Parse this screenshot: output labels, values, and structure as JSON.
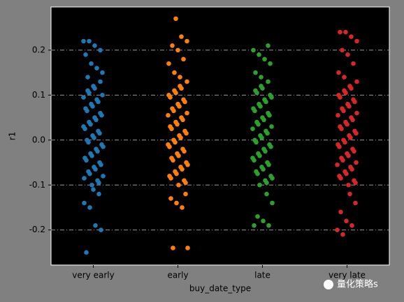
{
  "chart_data": {
    "type": "strip",
    "xlabel": "buy_date_type",
    "ylabel": "r1",
    "categories": [
      "very early",
      "early",
      "late",
      "very late"
    ],
    "series": [
      {
        "color": "#1f77b4",
        "values": [
          0.22,
          0.22,
          0.21,
          0.2,
          0.19,
          0.17,
          0.16,
          0.15,
          0.14,
          -0.11,
          -0.12,
          -0.14,
          -0.15,
          -0.19,
          -0.2,
          -0.25,
          -0.1,
          -0.09,
          -0.08,
          -0.07,
          -0.06,
          -0.05,
          -0.04,
          -0.03,
          -0.02,
          -0.01,
          0,
          0.01,
          0.02,
          0.03,
          0.04,
          0.05,
          0.06,
          0.07,
          0.08,
          0.09,
          0.1,
          0.11,
          0.12,
          -0.095,
          -0.085,
          -0.075,
          -0.065,
          -0.055,
          -0.045,
          -0.035,
          -0.025,
          -0.015,
          -0.005,
          0.005,
          0.015,
          0.025,
          0.035,
          0.045,
          0.055,
          0.065,
          0.075,
          0.085,
          0.095,
          0.105,
          0.115,
          0.13
        ]
      },
      {
        "color": "#ff7f0e",
        "values": [
          0.27,
          0.23,
          0.22,
          0.21,
          0.2,
          0.18,
          0.17,
          0.15,
          0.14,
          -0.12,
          -0.13,
          -0.14,
          -0.15,
          -0.24,
          -0.24,
          -0.1,
          -0.09,
          -0.08,
          -0.07,
          -0.06,
          -0.05,
          -0.04,
          -0.03,
          -0.02,
          -0.01,
          0,
          0.01,
          0.02,
          0.03,
          0.04,
          0.05,
          0.06,
          0.07,
          0.08,
          0.09,
          0.1,
          0.11,
          0.12,
          -0.095,
          -0.085,
          -0.075,
          -0.065,
          -0.055,
          -0.045,
          -0.035,
          -0.025,
          -0.015,
          -0.005,
          0.005,
          0.015,
          0.025,
          0.035,
          0.045,
          0.055,
          0.065,
          0.075,
          0.085,
          0.095,
          0.105,
          0.115,
          0.13
        ]
      },
      {
        "color": "#2ca02c",
        "values": [
          0.21,
          0.2,
          0.19,
          0.18,
          0.17,
          0.15,
          0.14,
          -0.12,
          -0.14,
          -0.17,
          -0.18,
          -0.19,
          -0.19,
          -0.1,
          -0.09,
          -0.08,
          -0.07,
          -0.06,
          -0.05,
          -0.04,
          -0.03,
          -0.02,
          -0.01,
          0,
          0.01,
          0.02,
          0.03,
          0.04,
          0.05,
          0.06,
          0.07,
          0.08,
          0.09,
          0.1,
          0.11,
          0.12,
          -0.095,
          -0.085,
          -0.075,
          -0.065,
          -0.055,
          -0.045,
          -0.035,
          -0.025,
          -0.015,
          -0.005,
          0.005,
          0.015,
          0.025,
          0.035,
          0.045,
          0.055,
          0.065,
          0.075,
          0.085,
          0.095,
          0.105,
          0.115,
          0.13
        ]
      },
      {
        "color": "#d62728",
        "values": [
          0.24,
          0.24,
          0.23,
          0.22,
          0.2,
          0.19,
          0.17,
          0.15,
          0.14,
          -0.12,
          -0.14,
          -0.16,
          -0.18,
          -0.19,
          -0.2,
          -0.21,
          -0.1,
          -0.09,
          -0.08,
          -0.07,
          -0.06,
          -0.05,
          -0.04,
          -0.03,
          -0.02,
          -0.01,
          0,
          0.01,
          0.02,
          0.03,
          0.04,
          0.05,
          0.06,
          0.07,
          0.08,
          0.09,
          0.1,
          0.11,
          0.12,
          -0.095,
          -0.085,
          -0.075,
          -0.065,
          -0.055,
          -0.045,
          -0.035,
          -0.025,
          -0.015,
          -0.005,
          0.005,
          0.015,
          0.025,
          0.035,
          0.045,
          0.055,
          0.065,
          0.075,
          0.085,
          0.095,
          0.105,
          0.115,
          0.13
        ]
      }
    ],
    "ylim": [
      -0.278,
      0.296
    ],
    "yticks": [
      -0.2,
      -0.1,
      {
        "value": 0,
        "label": "0.0"
      },
      0.1,
      0.2
    ],
    "grid": true,
    "watermark": "量化策略s"
  }
}
